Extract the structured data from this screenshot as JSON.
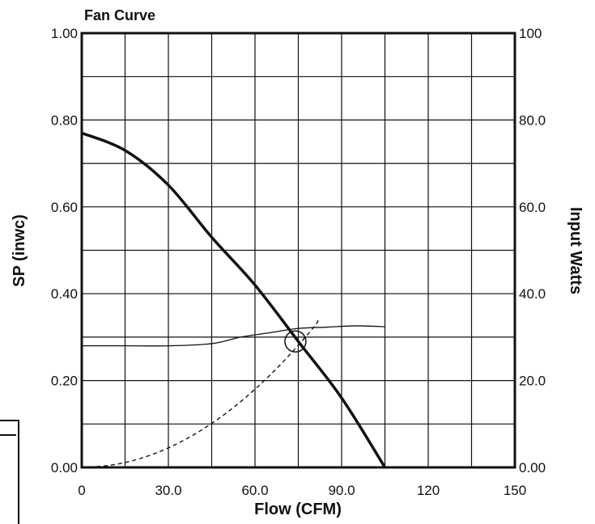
{
  "chart_data": {
    "type": "line",
    "title": "Fan Curve",
    "xlabel": "Flow (CFM)",
    "ylabel": "SP (inwc)",
    "y2label": "Input Watts",
    "xlim": [
      0,
      150
    ],
    "ylim": [
      0,
      1.0
    ],
    "y2lim": [
      0,
      100
    ],
    "x_ticks": [
      "0",
      "30.0",
      "60.0",
      "90.0",
      "120",
      "150"
    ],
    "x_tick_values": [
      0,
      30,
      60,
      90,
      120,
      150
    ],
    "y_ticks": [
      "0.00",
      "0.20",
      "0.40",
      "0.60",
      "0.80",
      "1.00"
    ],
    "y_tick_values": [
      0,
      0.2,
      0.4,
      0.6,
      0.8,
      1.0
    ],
    "y2_ticks": [
      "0.00",
      "20.0",
      "40.0",
      "60.0",
      "80.0",
      "100"
    ],
    "grid": true,
    "series": [
      {
        "role": "sp_curve",
        "axis": "left",
        "style": "thick-solid",
        "color": "#111111",
        "x": [
          0,
          15,
          30,
          45,
          60,
          75,
          90,
          105
        ],
        "y": [
          0.77,
          0.73,
          0.65,
          0.53,
          0.42,
          0.29,
          0.16,
          0.0
        ]
      },
      {
        "role": "watts_curve",
        "axis": "right",
        "style": "thin-solid",
        "color": "#111111",
        "x": [
          0,
          15,
          30,
          45,
          55,
          65,
          75,
          85,
          95,
          105
        ],
        "y": [
          28,
          28,
          28,
          28.5,
          30,
          31,
          32,
          32.3,
          32.6,
          32.4
        ]
      },
      {
        "role": "system_curve",
        "axis": "left",
        "style": "dashed",
        "color": "#111111",
        "x": [
          0,
          10,
          20,
          30,
          40,
          50,
          60,
          70,
          80,
          82
        ],
        "y": [
          0,
          0.005,
          0.02,
          0.045,
          0.08,
          0.125,
          0.18,
          0.245,
          0.32,
          0.34
        ]
      }
    ],
    "operating_point": {
      "x": 74,
      "y": 0.29
    }
  }
}
